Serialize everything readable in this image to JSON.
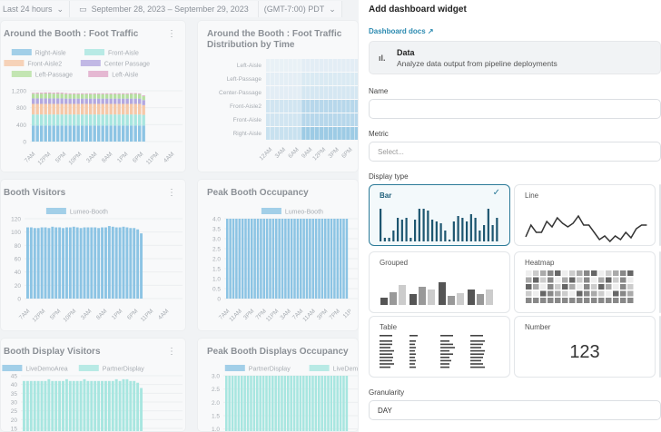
{
  "topbar": {
    "range": "Last 24 hours",
    "dates": "September 28, 2023 – September 29, 2023",
    "timezone": "(GMT-7:00) PDT"
  },
  "cards": [
    {
      "title": "Around the Booth : Foot Traffic",
      "legend": [
        "Right-Aisle",
        "Front-Aisle",
        "Front-Aisle2",
        "Center Passage",
        "Left-Passage",
        "Left-Aisle"
      ]
    },
    {
      "title": "Around the Booth : Foot Traffic Distribution by Time"
    },
    {
      "title": "Booth Visitors",
      "legend": [
        "Lumeo-Booth"
      ]
    },
    {
      "title": "Peak Booth Occupancy",
      "legend": [
        "Lumeo-Booth"
      ]
    },
    {
      "title": "Booth Display Visitors",
      "legend": [
        "LiveDemoArea",
        "PartnerDisplay"
      ]
    },
    {
      "title": "Peak Booth Displays Occupancy",
      "legend": [
        "PartnerDisplay",
        "LiveDemo"
      ]
    }
  ],
  "chart_data": [
    {
      "type": "bar",
      "stacked": true,
      "title": "Around the Booth : Foot Traffic",
      "yticks": [
        "0",
        "400",
        "800",
        "1,200"
      ],
      "ylim": [
        0,
        1200
      ],
      "xticks": [
        "7AM",
        "12PM",
        "5PM",
        "10PM",
        "3AM",
        "8AM",
        "1PM",
        "6PM",
        "11PM",
        "4AM"
      ],
      "series": [
        {
          "name": "Right-Aisle",
          "color": "#8cc4e4",
          "values": [
            380,
            380,
            380,
            380,
            380,
            380,
            380,
            380,
            380,
            380,
            380,
            380,
            380,
            380,
            380,
            380,
            380,
            380,
            380,
            380,
            380,
            380,
            380,
            380,
            380,
            380,
            380,
            380
          ]
        },
        {
          "name": "Front-Aisle",
          "color": "#a8e6e0",
          "values": [
            260,
            260,
            260,
            260,
            260,
            260,
            260,
            260,
            260,
            260,
            260,
            260,
            260,
            260,
            260,
            260,
            260,
            260,
            260,
            260,
            260,
            260,
            260,
            260,
            260,
            260,
            260,
            250
          ]
        },
        {
          "name": "Front-Aisle2",
          "color": "#f5c8a8",
          "values": [
            250,
            250,
            250,
            250,
            250,
            250,
            250,
            250,
            250,
            250,
            250,
            250,
            250,
            250,
            250,
            250,
            250,
            250,
            250,
            250,
            250,
            250,
            250,
            250,
            250,
            250,
            250,
            230
          ]
        },
        {
          "name": "Center Passage",
          "color": "#b3a8e0",
          "values": [
            130,
            130,
            130,
            130,
            130,
            130,
            130,
            130,
            125,
            125,
            125,
            125,
            125,
            125,
            125,
            125,
            125,
            125,
            125,
            125,
            125,
            125,
            125,
            125,
            125,
            125,
            125,
            120
          ]
        },
        {
          "name": "Left-Passage",
          "color": "#b5e0a0",
          "values": [
            110,
            110,
            110,
            115,
            115,
            110,
            110,
            110,
            105,
            105,
            105,
            105,
            105,
            105,
            105,
            105,
            105,
            105,
            105,
            105,
            105,
            105,
            105,
            105,
            110,
            110,
            105,
            90
          ]
        },
        {
          "name": "Left-Aisle",
          "color": "#e0a8c8",
          "values": [
            20,
            25,
            25,
            25,
            25,
            25,
            30,
            25,
            25,
            20,
            20,
            20,
            20,
            20,
            20,
            20,
            20,
            20,
            20,
            20,
            20,
            20,
            20,
            20,
            20,
            20,
            20,
            20
          ]
        }
      ]
    },
    {
      "type": "heatmap",
      "title": "Around the Booth : Foot Traffic Distribution by Time",
      "rows": [
        "Left-Aisle",
        "Left-Passage",
        "Center-Passage",
        "Front-Aisle2",
        "Front-Aisle",
        "Right-Aisle"
      ],
      "xticks": [
        "12AM",
        "3AM",
        "6AM",
        "9AM",
        "12PM",
        "3PM",
        "6PM"
      ],
      "values": [
        [
          2,
          2,
          2,
          2,
          2,
          2,
          2,
          2,
          10,
          10,
          10,
          10,
          10,
          10,
          10,
          10,
          10,
          10,
          10,
          10,
          10,
          10,
          10,
          10
        ],
        [
          8,
          8,
          8,
          8,
          8,
          8,
          8,
          8,
          20,
          20,
          20,
          20,
          20,
          20,
          20,
          20,
          20,
          20,
          20,
          20,
          20,
          20,
          20,
          20
        ],
        [
          10,
          10,
          10,
          10,
          10,
          10,
          10,
          10,
          25,
          25,
          25,
          25,
          25,
          25,
          25,
          25,
          25,
          25,
          25,
          25,
          25,
          25,
          25,
          25
        ],
        [
          30,
          30,
          30,
          30,
          30,
          30,
          30,
          30,
          60,
          60,
          60,
          60,
          60,
          60,
          60,
          60,
          60,
          60,
          60,
          60,
          60,
          60,
          60,
          60
        ],
        [
          30,
          30,
          30,
          30,
          30,
          30,
          30,
          30,
          60,
          60,
          60,
          60,
          60,
          60,
          60,
          60,
          60,
          60,
          60,
          60,
          60,
          60,
          60,
          60
        ],
        [
          40,
          40,
          40,
          40,
          40,
          40,
          40,
          40,
          90,
          90,
          90,
          90,
          90,
          90,
          90,
          90,
          90,
          90,
          90,
          90,
          90,
          90,
          90,
          90
        ]
      ]
    },
    {
      "type": "bar",
      "title": "Booth Visitors",
      "yticks": [
        "0",
        "20",
        "40",
        "60",
        "80",
        "100",
        "120"
      ],
      "ylim": [
        0,
        120
      ],
      "xticks": [
        "7AM",
        "12PM",
        "5PM",
        "10PM",
        "3AM",
        "8AM",
        "1PM",
        "6PM",
        "11PM",
        "4AM"
      ],
      "series": [
        {
          "name": "Lumeo-Booth",
          "color": "#8cc4e4",
          "values": [
            107,
            107,
            106,
            106,
            107,
            107,
            106,
            108,
            107,
            107,
            106,
            107,
            107,
            108,
            107,
            106,
            107,
            107,
            107,
            107,
            106,
            107,
            107,
            109,
            108,
            107,
            107,
            108,
            107,
            106,
            106,
            104,
            98
          ]
        }
      ]
    },
    {
      "type": "bar",
      "title": "Peak Booth Occupancy",
      "yticks": [
        "0",
        "0.5",
        "1.0",
        "1.5",
        "2.0",
        "2.5",
        "3.0",
        "3.5",
        "4.0"
      ],
      "ylim": [
        0,
        4
      ],
      "xticks": [
        "7AM",
        "11AM",
        "3PM",
        "7PM",
        "11PM",
        "3AM",
        "7AM",
        "11AM",
        "3PM",
        "7PM",
        "11P"
      ],
      "series": [
        {
          "name": "Lumeo-Booth",
          "color": "#8cc4e4",
          "values": [
            4,
            4,
            4,
            4,
            4,
            4,
            4,
            4,
            4,
            4,
            4,
            4,
            4,
            4,
            4,
            4,
            4,
            4,
            4,
            4,
            4,
            4,
            4,
            4,
            4,
            4,
            4,
            4,
            4,
            4,
            4,
            4,
            4,
            4,
            4,
            4,
            4,
            4,
            4,
            4
          ]
        }
      ]
    },
    {
      "type": "bar",
      "title": "Booth Display Visitors",
      "yticks": [
        "15",
        "20",
        "25",
        "30",
        "35",
        "40",
        "45"
      ],
      "ylim": [
        0,
        45
      ],
      "series": [
        {
          "name": "LiveDemoArea",
          "color": "#8cc4e4",
          "values": []
        },
        {
          "name": "PartnerDisplay",
          "color": "#a8e6e0",
          "values": [
            42,
            42,
            42,
            42,
            42,
            42,
            42,
            43,
            42,
            42,
            42,
            42,
            43,
            42,
            42,
            42,
            42,
            43,
            42,
            42,
            42,
            42,
            42,
            42,
            42,
            42,
            43,
            42,
            43,
            43,
            42,
            42,
            41,
            38
          ]
        }
      ]
    },
    {
      "type": "bar",
      "title": "Peak Booth Displays Occupancy",
      "yticks": [
        "1.0",
        "1.5",
        "2.0",
        "2.5",
        "3.0"
      ],
      "ylim": [
        0,
        3
      ],
      "series": [
        {
          "name": "PartnerDisplay",
          "color": "#8cc4e4",
          "values": []
        },
        {
          "name": "LiveDemo",
          "color": "#a8e6e0",
          "values": [
            3,
            3,
            3,
            3,
            3,
            3,
            3,
            3,
            3,
            3,
            3,
            3,
            3,
            3,
            3,
            3,
            3,
            3,
            3,
            3,
            3,
            3,
            3,
            3,
            3,
            3,
            3,
            3,
            3,
            3,
            3,
            3,
            3,
            3,
            3,
            3,
            3,
            3,
            3,
            3
          ]
        }
      ]
    }
  ],
  "panel": {
    "title": "Add dashboard widget",
    "docs": "Dashboard docs",
    "data_title": "Data",
    "data_desc": "Analyze data output from pipeline deployments",
    "name_label": "Name",
    "name_value": "",
    "metric_label": "Metric",
    "metric_placeholder": "Select...",
    "display_label": "Display type",
    "types": [
      "Bar",
      "Line",
      "Grouped",
      "Heatmap",
      "Table",
      "Number"
    ],
    "selected": "Bar",
    "number_sample": "123",
    "granularity_label": "Granularity",
    "granularity_value": "DAY"
  }
}
